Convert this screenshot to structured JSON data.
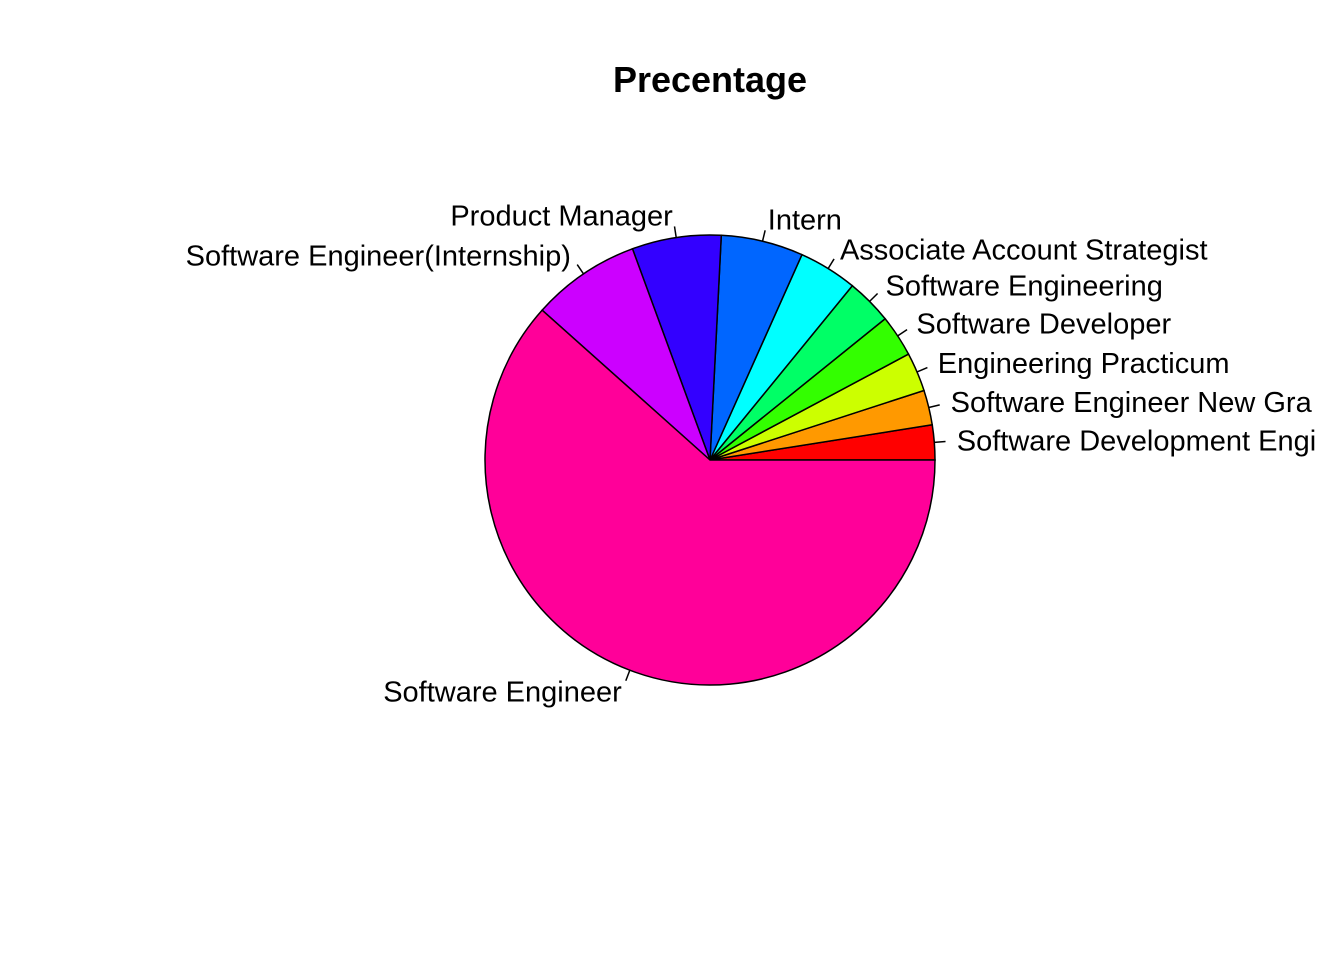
{
  "chart_data": {
    "type": "pie",
    "title": "Precentage",
    "start_angle_deg": 0,
    "direction": "counterclockwise",
    "slices": [
      {
        "label": "Software Development Engi",
        "value": 2.5,
        "color": "#FF0000"
      },
      {
        "label": "Software Engineer New Gra",
        "value": 2.5,
        "color": "#FF9900"
      },
      {
        "label": "Engineering Practicum",
        "value": 2.8,
        "color": "#CCFF00"
      },
      {
        "label": "Software Developer",
        "value": 3.0,
        "color": "#33FF00"
      },
      {
        "label": "Software Engineering",
        "value": 3.3,
        "color": "#00FF66"
      },
      {
        "label": "Associate Account Strategist",
        "value": 4.2,
        "color": "#00FFFF"
      },
      {
        "label": "Intern",
        "value": 5.9,
        "color": "#0066FF"
      },
      {
        "label": "Product Manager",
        "value": 6.4,
        "color": "#3300FF"
      },
      {
        "label": "Software Engineer(Internship)",
        "value": 7.8,
        "color": "#CC00FF"
      },
      {
        "label": "Software Engineer",
        "value": 61.6,
        "color": "#FF0099"
      }
    ]
  }
}
